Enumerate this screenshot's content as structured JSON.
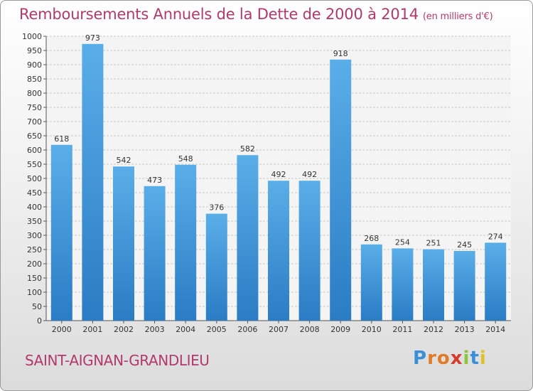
{
  "title": "Remboursements Annuels de la Dette de 2000 à 2014",
  "subtitle": "(en milliers d'€)",
  "place_name": "SAINT-AIGNAN-GRANDLIEU",
  "logo": {
    "letters": [
      "P",
      "r",
      "o",
      "x",
      "i",
      "t",
      "i"
    ],
    "colors": [
      "#3b8fd4",
      "#e07b2a",
      "#e07b2a",
      "#d53a2a",
      "#8cc43e",
      "#3b8fd4",
      "#e0c12a"
    ]
  },
  "colors": {
    "bar_top": "#5aaee8",
    "bar_bottom": "#2a7cc4",
    "title": "#b23a6a",
    "grid": "#c8c8c8"
  },
  "chart_data": {
    "type": "bar",
    "title": "Remboursements Annuels de la Dette de 2000 à 2014",
    "subtitle": "(en milliers d'€)",
    "categories": [
      "2000",
      "2001",
      "2002",
      "2003",
      "2004",
      "2005",
      "2006",
      "2007",
      "2008",
      "2009",
      "2010",
      "2011",
      "2012",
      "2013",
      "2014"
    ],
    "values": [
      618,
      973,
      542,
      473,
      548,
      376,
      582,
      492,
      492,
      918,
      268,
      254,
      251,
      245,
      274
    ],
    "ylim": [
      0,
      1000
    ],
    "ytick_step": 50,
    "grid": true,
    "data_labels": true
  }
}
